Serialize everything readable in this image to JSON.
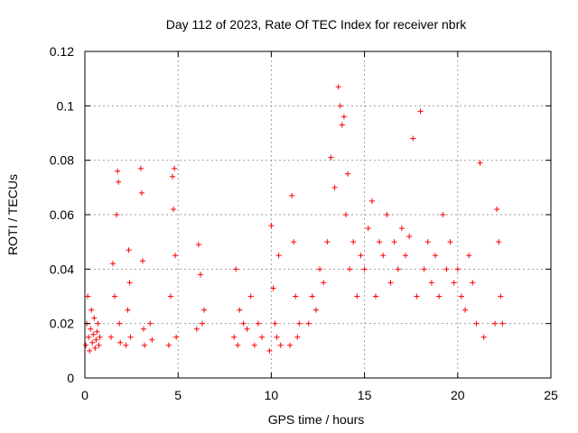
{
  "chart_data": {
    "type": "scatter",
    "title": "Day 112 of 2023, Rate Of TEC Index for receiver nbrk",
    "xlabel": "GPS time / hours",
    "ylabel": "ROTI / TECUs",
    "xlim": [
      0,
      25
    ],
    "ylim": [
      0,
      0.12
    ],
    "x_ticks": [
      "0",
      "5",
      "10",
      "15",
      "20",
      "25"
    ],
    "y_ticks": [
      "0",
      "0.02",
      "0.04",
      "0.06",
      "0.08",
      "0.1",
      "0.12"
    ],
    "grid": true,
    "marker": "plus",
    "color": "#ff0000",
    "series": [
      {
        "x": [
          0.05,
          0.1,
          0.15,
          0.2,
          0.25,
          0.3,
          0.35,
          0.4,
          0.45,
          0.5,
          0.55,
          0.6,
          0.65,
          0.7,
          0.75,
          0.8,
          1.4,
          1.5,
          1.6,
          1.7,
          1.75,
          1.8,
          1.85,
          1.9,
          2.2,
          2.3,
          2.35,
          2.4,
          2.45,
          3.0,
          3.05,
          3.1,
          3.15,
          3.2,
          3.5,
          3.6,
          4.5,
          4.6,
          4.7,
          4.75,
          4.8,
          4.85,
          4.9,
          6.0,
          6.1,
          6.2,
          6.3,
          6.4,
          8.0,
          8.1,
          8.2,
          8.3,
          8.5,
          8.7,
          8.9,
          9.1,
          9.3,
          9.5,
          9.9,
          10.0,
          10.1,
          10.2,
          10.3,
          10.4,
          10.5,
          11.0,
          11.1,
          11.2,
          11.3,
          11.4,
          11.5,
          12.0,
          12.2,
          12.4,
          12.6,
          12.8,
          13.0,
          13.2,
          13.4,
          13.6,
          13.7,
          13.8,
          13.9,
          14.0,
          14.1,
          14.2,
          14.4,
          14.6,
          14.8,
          15.0,
          15.2,
          15.4,
          15.6,
          15.8,
          16.0,
          16.2,
          16.4,
          16.6,
          16.8,
          17.0,
          17.2,
          17.4,
          17.6,
          17.8,
          18.0,
          18.2,
          18.4,
          18.6,
          18.8,
          19.0,
          19.2,
          19.4,
          19.6,
          19.8,
          20.0,
          20.2,
          20.4,
          20.6,
          20.8,
          21.0,
          21.2,
          21.4,
          22.0,
          22.1,
          22.2,
          22.3,
          22.4
        ],
        "y": [
          0.012,
          0.02,
          0.03,
          0.015,
          0.01,
          0.018,
          0.025,
          0.013,
          0.016,
          0.022,
          0.011,
          0.014,
          0.017,
          0.02,
          0.012,
          0.015,
          0.015,
          0.042,
          0.03,
          0.06,
          0.076,
          0.072,
          0.02,
          0.013,
          0.012,
          0.025,
          0.047,
          0.035,
          0.015,
          0.077,
          0.068,
          0.043,
          0.018,
          0.012,
          0.02,
          0.014,
          0.012,
          0.03,
          0.074,
          0.062,
          0.077,
          0.045,
          0.015,
          0.018,
          0.049,
          0.038,
          0.02,
          0.025,
          0.015,
          0.04,
          0.012,
          0.025,
          0.02,
          0.018,
          0.03,
          0.012,
          0.02,
          0.015,
          0.01,
          0.056,
          0.033,
          0.02,
          0.015,
          0.045,
          0.012,
          0.012,
          0.067,
          0.05,
          0.03,
          0.015,
          0.02,
          0.02,
          0.03,
          0.025,
          0.04,
          0.035,
          0.05,
          0.081,
          0.07,
          0.107,
          0.1,
          0.093,
          0.096,
          0.06,
          0.075,
          0.04,
          0.05,
          0.03,
          0.045,
          0.04,
          0.055,
          0.065,
          0.03,
          0.05,
          0.045,
          0.06,
          0.035,
          0.05,
          0.04,
          0.055,
          0.045,
          0.052,
          0.088,
          0.03,
          0.098,
          0.04,
          0.05,
          0.035,
          0.045,
          0.03,
          0.06,
          0.04,
          0.05,
          0.035,
          0.04,
          0.03,
          0.025,
          0.045,
          0.035,
          0.02,
          0.079,
          0.015,
          0.02,
          0.062,
          0.05,
          0.03,
          0.02
        ]
      }
    ]
  }
}
